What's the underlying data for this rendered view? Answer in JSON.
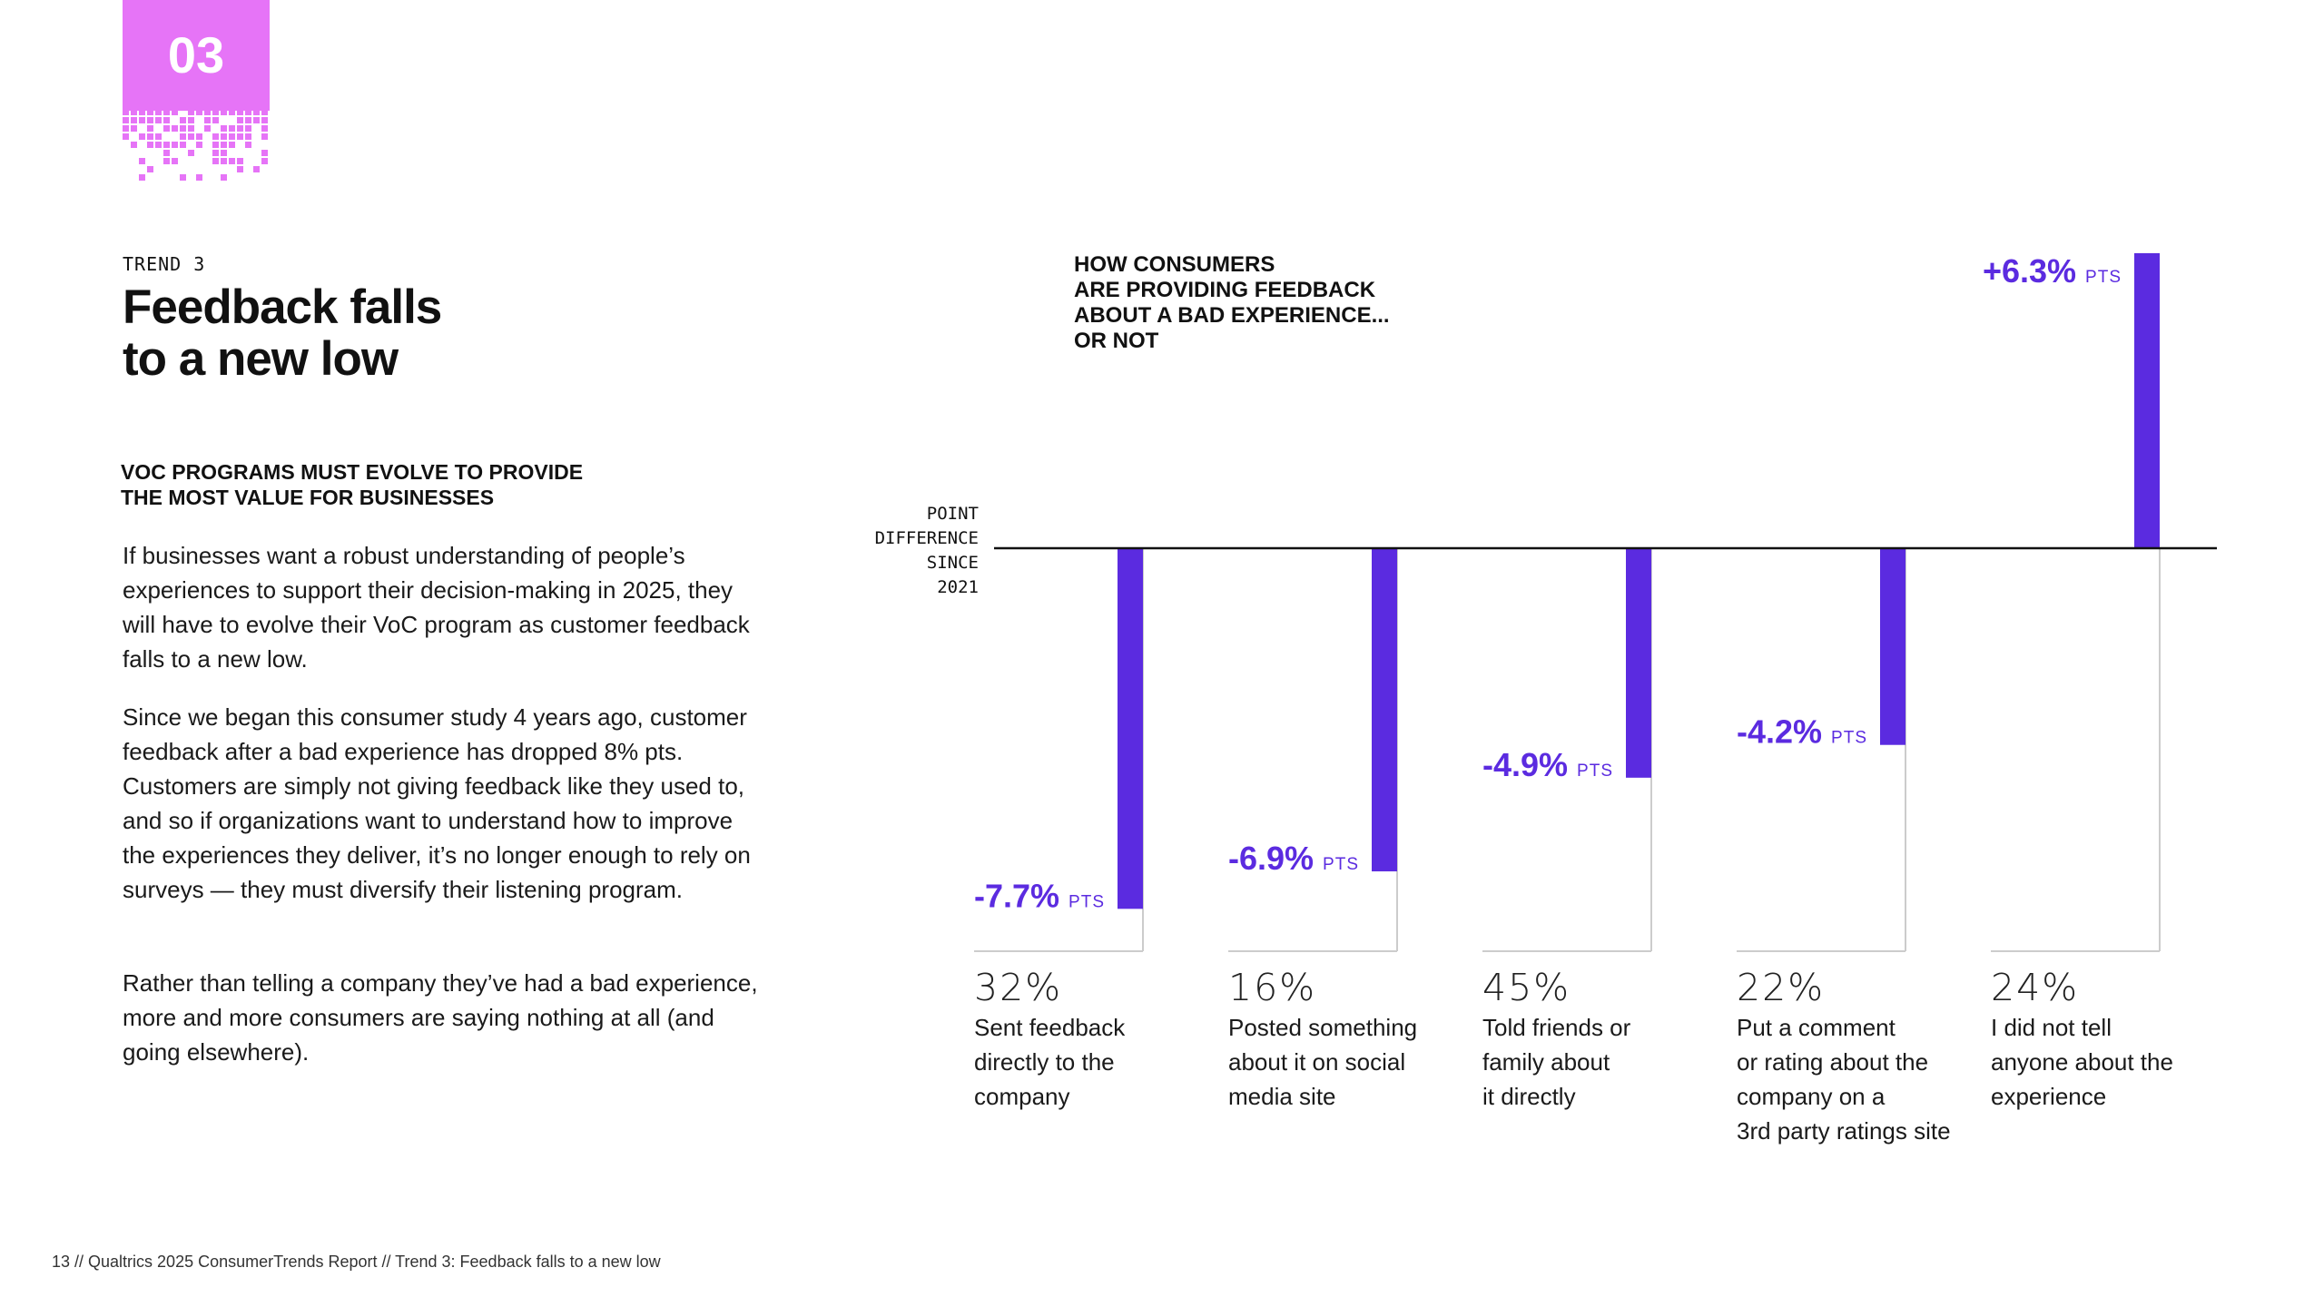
{
  "badge": {
    "number": "03",
    "color": "#e674f7"
  },
  "trend": {
    "label": "TREND 3",
    "title_lines": [
      "Feedback falls",
      "to a new low"
    ]
  },
  "subheading_lines": [
    "VOC PROGRAMS MUST EVOLVE TO PROVIDE",
    "THE MOST VALUE FOR BUSINESSES"
  ],
  "paragraphs": [
    "If businesses want a robust understanding of people’s experiences to support their decision-making in 2025, they will have to evolve their VoC program as customer feedback falls to a new low.",
    "Since we began this consumer study 4 years ago, customer feedback after a bad experience has dropped 8% pts. Customers are simply not giving feedback like they used to, and so if organizations want to understand how to improve the experiences they deliver, it’s no longer enough to rely on surveys — they must diversify their listening program.",
    "Rather than telling a company they’ve had a bad experience, more and more consumers are saying nothing at all (and going elsewhere)."
  ],
  "footer": "13  //  Qualtrics 2025 ConsumerTrends Report  //  Trend 3: Feedback falls to a new low",
  "colors": {
    "bar": "#5b2be0",
    "label": "#5b2be0",
    "frame": "#cccccc",
    "axis": "#111111"
  },
  "chart_data": {
    "type": "bar",
    "title_lines": [
      "HOW CONSUMERS",
      "ARE PROVIDING FEEDBACK",
      "ABOUT A BAD EXPERIENCE...",
      "OR NOT"
    ],
    "ylabel_lines": [
      "POINT",
      "DIFFERENCE",
      "SINCE",
      "2021"
    ],
    "unit_label": "PTS",
    "categories": [
      [
        "Sent feedback",
        "directly to the",
        "company"
      ],
      [
        "Posted something",
        "about it on social",
        "media site"
      ],
      [
        "Told friends or",
        "family about",
        "it directly"
      ],
      [
        "Put a comment",
        "or rating about the",
        "company on a",
        "3rd party ratings site"
      ],
      [
        "I did not tell",
        "anyone about the",
        "experience"
      ]
    ],
    "share_labels": [
      "32%",
      "16%",
      "45%",
      "22%",
      "24%"
    ],
    "values": [
      -7.7,
      -6.9,
      -4.9,
      -4.2,
      6.3
    ],
    "value_labels": [
      "-7.7%",
      "-6.9%",
      "-4.9%",
      "-4.2%",
      "+6.3%"
    ]
  }
}
